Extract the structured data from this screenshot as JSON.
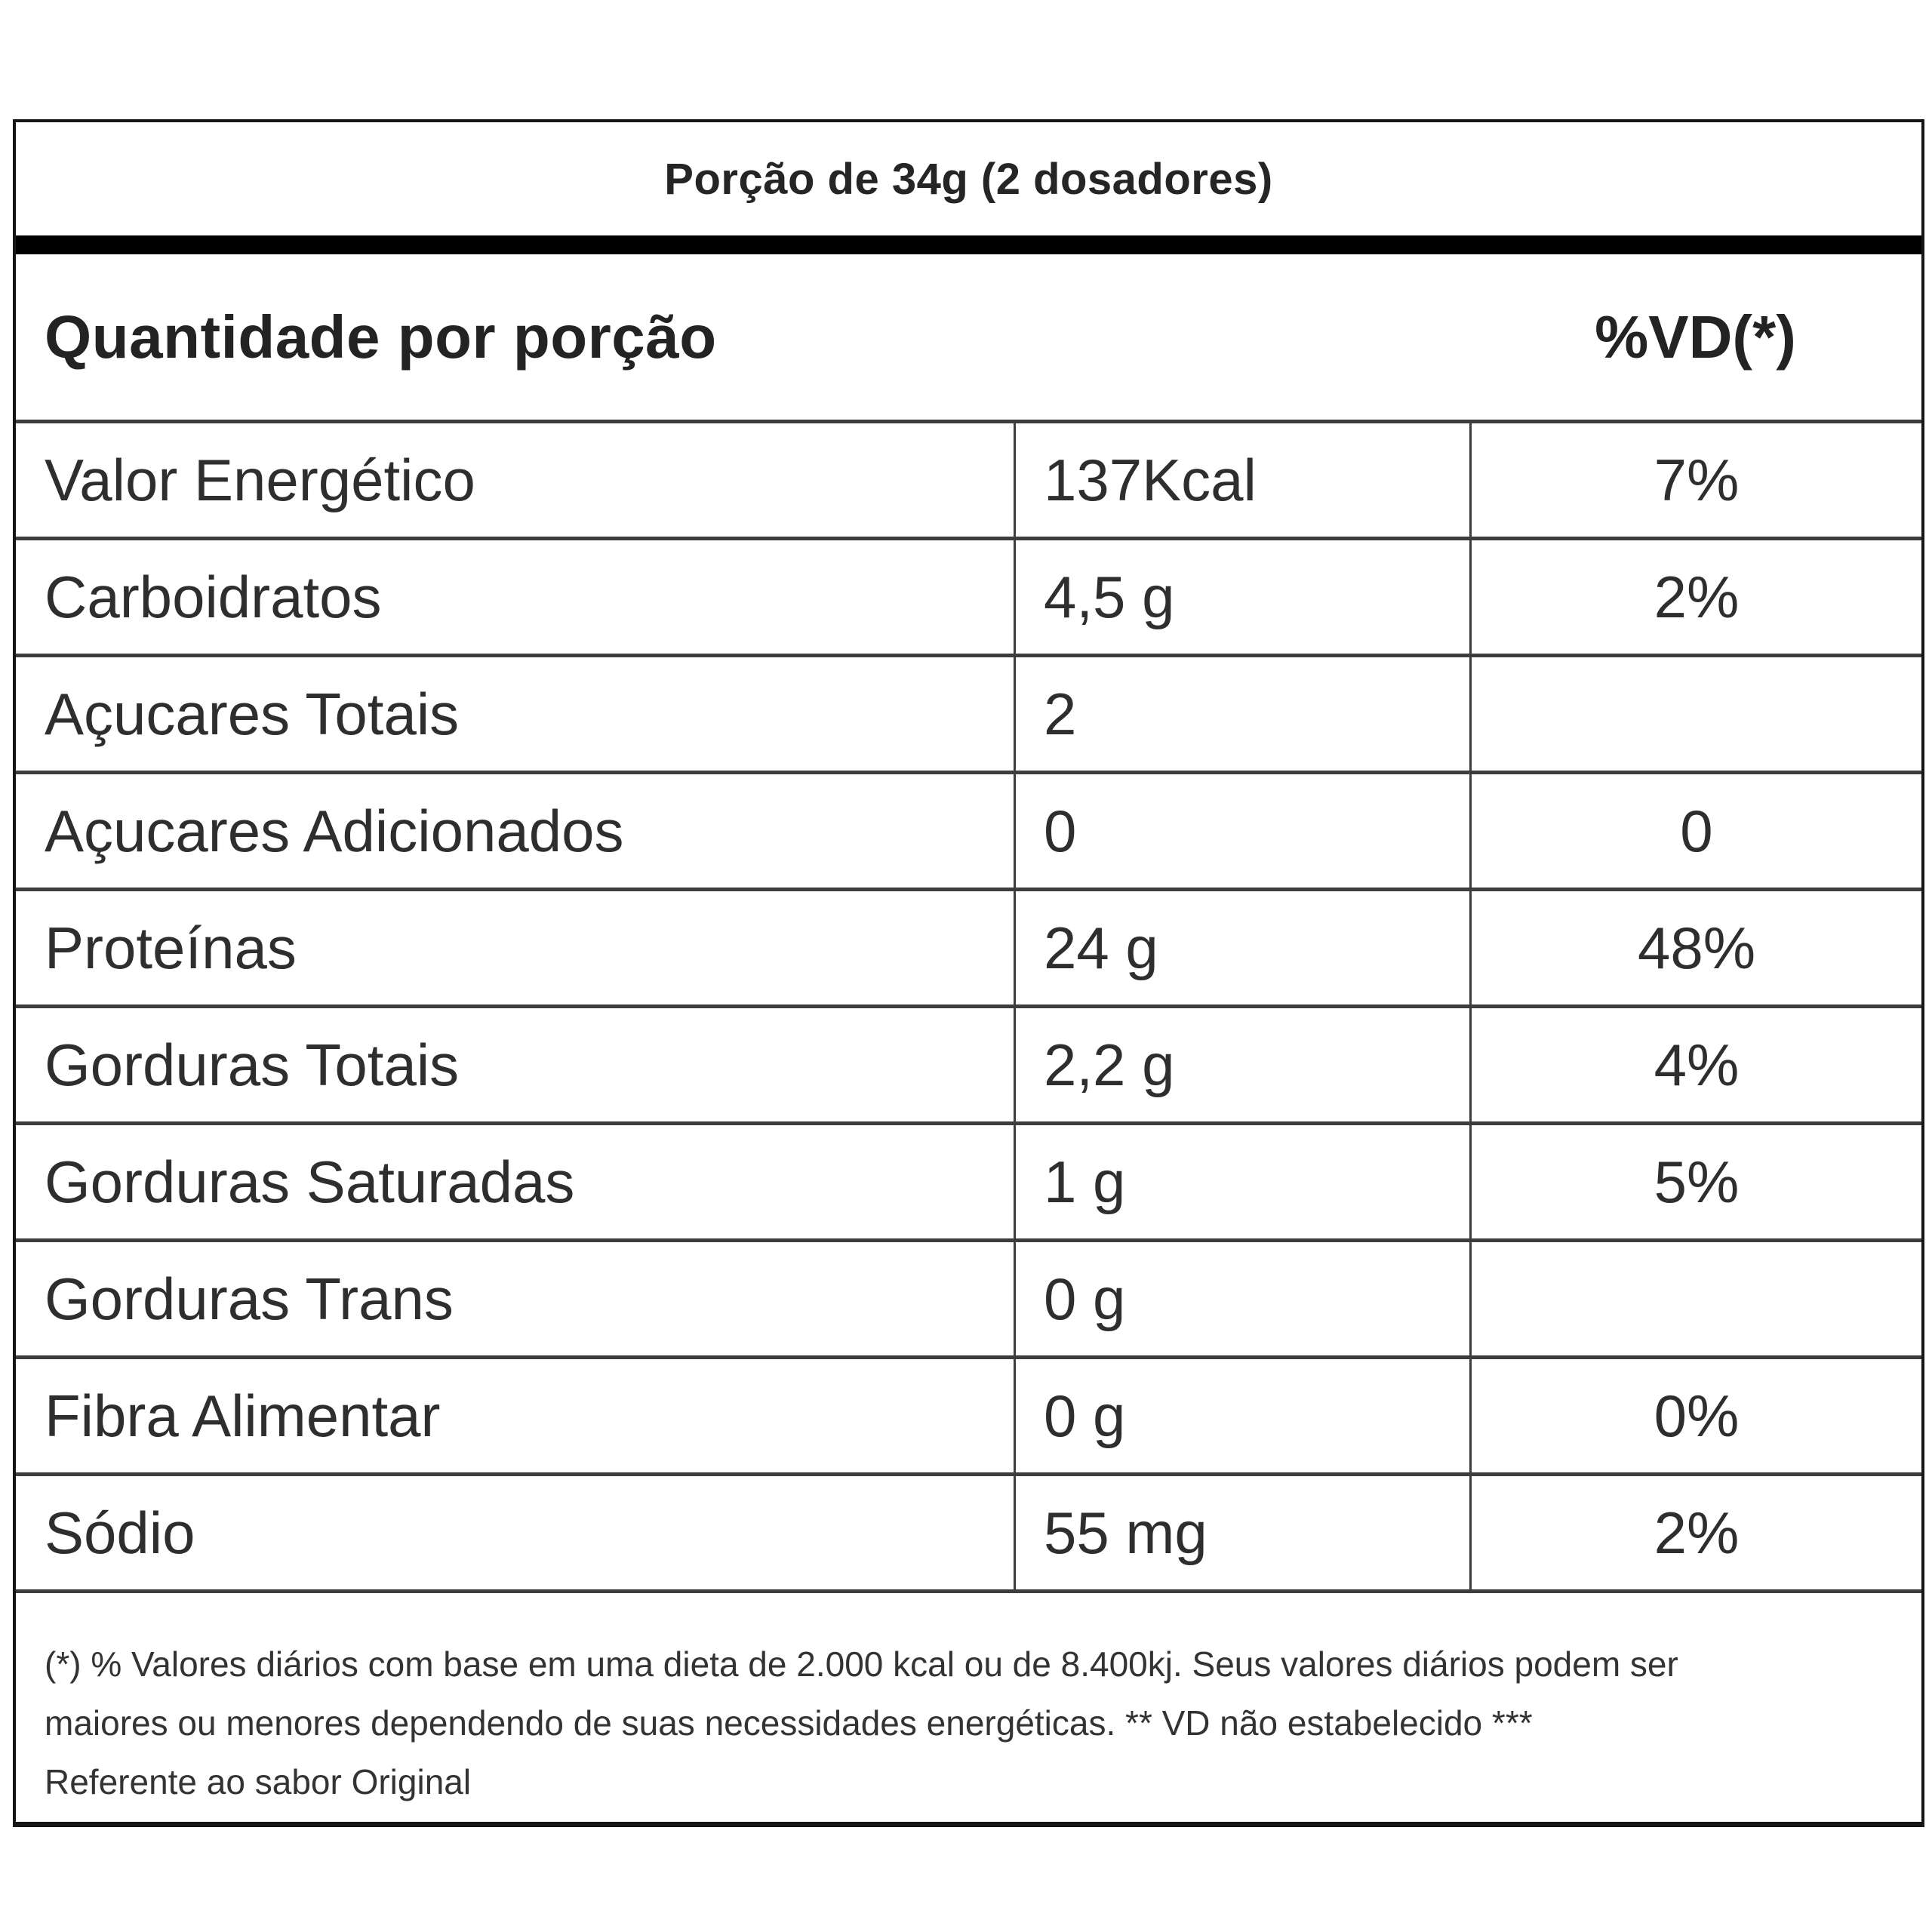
{
  "table": {
    "serving_header": "Porção de 34g (2 dosadores)",
    "column_headers": {
      "quantity": "Quantidade por porção",
      "daily_value": "%VD(*)"
    },
    "rows": [
      {
        "name": "Valor Energético",
        "amount": "137Kcal",
        "dv": "7%"
      },
      {
        "name": "Carboidratos",
        "amount": "4,5 g",
        "dv": "2%"
      },
      {
        "name": "Açucares Totais",
        "amount": "2",
        "dv": ""
      },
      {
        "name": "Açucares Adicionados",
        "amount": "0",
        "dv": "0"
      },
      {
        "name": "Proteínas",
        "amount": "24 g",
        "dv": "48%"
      },
      {
        "name": "Gorduras Totais",
        "amount": "2,2 g",
        "dv": "4%"
      },
      {
        "name": "Gorduras Saturadas",
        "amount": "1 g",
        "dv": "5%"
      },
      {
        "name": "Gorduras Trans",
        "amount": "0 g",
        "dv": ""
      },
      {
        "name": "Fibra Alimentar",
        "amount": "0 g",
        "dv": "0%"
      },
      {
        "name": "Sódio",
        "amount": "55 mg",
        "dv": "2%"
      }
    ],
    "footnote_lines": [
      "(*) % Valores diários com base em uma dieta de 2.000 kcal ou de 8.400kj. Seus valores diários podem ser",
      "maiores ou menores dependendo de suas necessidades energéticas. ** VD não estabelecido ***",
      "Referente ao sabor Original"
    ],
    "colors": {
      "border_outer": "#161616",
      "border_inner": "#3d3d3d",
      "header_bar": "#000000",
      "text": "#2e2e2e"
    }
  }
}
